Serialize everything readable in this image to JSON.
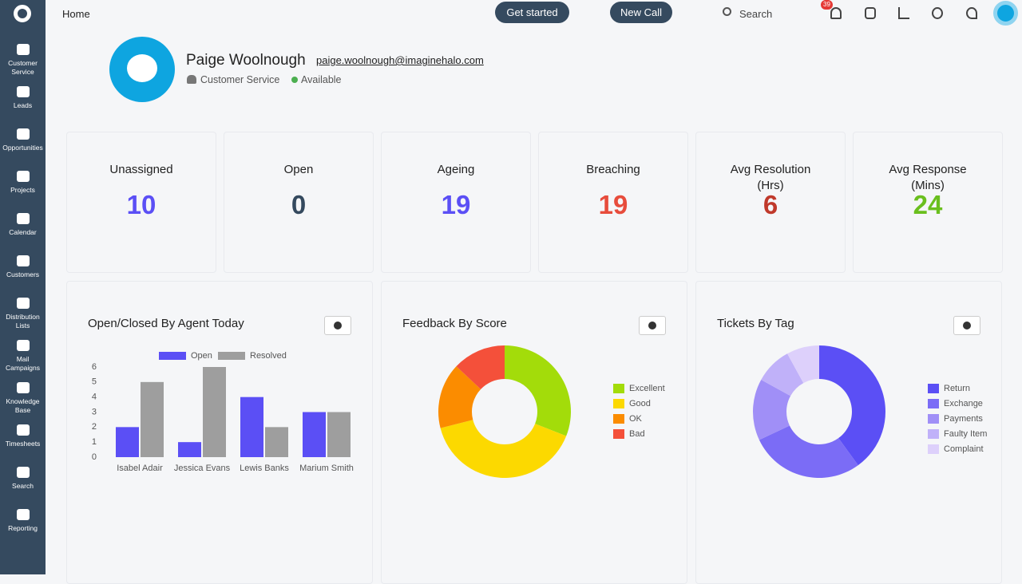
{
  "sidebar": {
    "items": [
      "Customer Service",
      "Leads",
      "Opportunities",
      "Projects",
      "Calendar",
      "Customers",
      "Distribution Lists",
      "Mail Campaigns",
      "Knowledge Base",
      "Timesheets",
      "Search",
      "Reporting"
    ]
  },
  "topbar": {
    "breadcrumb": "Home",
    "buttons": [
      "Get started",
      "New Call"
    ],
    "search": "Search",
    "notification_count": 39
  },
  "profile": {
    "name": "Paige Woolnough",
    "email": "paige.woolnough@imaginehalo.com",
    "team": "Customer Service",
    "status": "Available"
  },
  "stats": [
    {
      "label": "Unassigned",
      "value": 10,
      "color": "#5b4ff5"
    },
    {
      "label": "Open",
      "value": 0,
      "color": "#34495e"
    },
    {
      "label": "Ageing",
      "value": 19,
      "color": "#5b4ff5"
    },
    {
      "label": "Breaching",
      "value": 19,
      "color": "#e74c3c"
    },
    {
      "label": "Avg Resolution (Hrs)",
      "value": 6,
      "color": "#c0392b"
    },
    {
      "label": "Avg Response (Mins)",
      "value": 24,
      "color": "#6abf1e"
    }
  ],
  "chart_data": [
    {
      "type": "bar",
      "title": "Open/Closed By Agent Today",
      "categories": [
        "Isabel Adair",
        "Jessica Evans",
        "Lewis Banks",
        "Marium Smith"
      ],
      "series": [
        {
          "name": "Open",
          "color": "#5b4ff5",
          "values": [
            2,
            1,
            4,
            3
          ]
        },
        {
          "name": "Resolved",
          "color": "#9e9e9e",
          "values": [
            5,
            6,
            2,
            3
          ]
        }
      ],
      "ylim": [
        0,
        6
      ],
      "yticks": [
        0,
        1,
        2,
        3,
        4,
        5,
        6
      ]
    },
    {
      "type": "donut",
      "title": "Feedback By Score",
      "categories": [
        "Excellent",
        "Good",
        "OK",
        "Bad"
      ],
      "values": [
        31,
        40,
        16,
        13
      ],
      "colors": [
        "#a3dc0a",
        "#fcd900",
        "#fb8c00",
        "#f4503a"
      ]
    },
    {
      "type": "donut",
      "title": "Tickets By Tag",
      "categories": [
        "Return",
        "Exchange",
        "Payments",
        "Faulty Item",
        "Complaint"
      ],
      "values": [
        40,
        28,
        15,
        9,
        8
      ],
      "colors": [
        "#5b4ff5",
        "#7b6cf6",
        "#a08ff7",
        "#c0b1f9",
        "#ddd0fb"
      ]
    }
  ]
}
